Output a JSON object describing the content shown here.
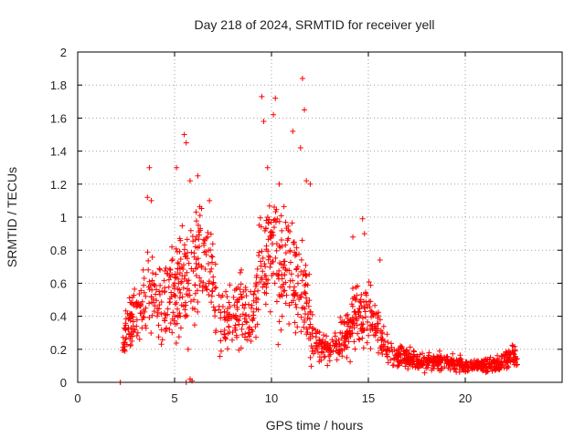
{
  "chart_data": {
    "type": "scatter",
    "title": "Day 218 of 2024, SRMTID for receiver yell",
    "xlabel": "GPS time / hours",
    "ylabel": "SRMTID / TECUs",
    "xlim": [
      0,
      25
    ],
    "ylim": [
      0,
      2
    ],
    "xticks": [
      0,
      5,
      10,
      15,
      20
    ],
    "yticks": [
      0,
      0.2,
      0.4,
      0.6,
      0.8,
      1,
      1.2,
      1.4,
      1.6,
      1.8,
      2
    ],
    "xtick_labels": [
      "0",
      "5",
      "10",
      "15",
      "20"
    ],
    "ytick_labels": [
      "0",
      "0.2",
      "0.4",
      "0.6",
      "0.8",
      "1",
      "1.2",
      "1.4",
      "1.6",
      "1.8",
      "2"
    ],
    "grid": true,
    "marker": "+",
    "series": [
      {
        "name": "SRMTID",
        "color": "#ff0000",
        "envelope": [
          {
            "x": 2.3,
            "mean": 0.22,
            "spread": 0.12
          },
          {
            "x": 2.6,
            "mean": 0.35,
            "spread": 0.16
          },
          {
            "x": 3.0,
            "mean": 0.42,
            "spread": 0.22
          },
          {
            "x": 3.5,
            "mean": 0.5,
            "spread": 0.28
          },
          {
            "x": 4.0,
            "mean": 0.52,
            "spread": 0.3
          },
          {
            "x": 4.5,
            "mean": 0.48,
            "spread": 0.28
          },
          {
            "x": 5.0,
            "mean": 0.52,
            "spread": 0.3
          },
          {
            "x": 5.5,
            "mean": 0.62,
            "spread": 0.38
          },
          {
            "x": 6.0,
            "mean": 0.72,
            "spread": 0.32
          },
          {
            "x": 6.5,
            "mean": 0.78,
            "spread": 0.28
          },
          {
            "x": 7.0,
            "mean": 0.6,
            "spread": 0.3
          },
          {
            "x": 7.5,
            "mean": 0.42,
            "spread": 0.22
          },
          {
            "x": 8.0,
            "mean": 0.38,
            "spread": 0.2
          },
          {
            "x": 8.5,
            "mean": 0.45,
            "spread": 0.25
          },
          {
            "x": 9.0,
            "mean": 0.35,
            "spread": 0.2
          },
          {
            "x": 9.5,
            "mean": 0.7,
            "spread": 0.38
          },
          {
            "x": 10.0,
            "mean": 0.82,
            "spread": 0.4
          },
          {
            "x": 10.5,
            "mean": 0.62,
            "spread": 0.35
          },
          {
            "x": 11.0,
            "mean": 0.7,
            "spread": 0.38
          },
          {
            "x": 11.5,
            "mean": 0.62,
            "spread": 0.35
          },
          {
            "x": 12.0,
            "mean": 0.32,
            "spread": 0.18
          },
          {
            "x": 12.5,
            "mean": 0.22,
            "spread": 0.1
          },
          {
            "x": 13.0,
            "mean": 0.2,
            "spread": 0.1
          },
          {
            "x": 13.5,
            "mean": 0.24,
            "spread": 0.12
          },
          {
            "x": 14.0,
            "mean": 0.32,
            "spread": 0.15
          },
          {
            "x": 14.5,
            "mean": 0.4,
            "spread": 0.2
          },
          {
            "x": 15.0,
            "mean": 0.42,
            "spread": 0.2
          },
          {
            "x": 15.5,
            "mean": 0.3,
            "spread": 0.15
          },
          {
            "x": 16.0,
            "mean": 0.18,
            "spread": 0.08
          },
          {
            "x": 17.0,
            "mean": 0.14,
            "spread": 0.06
          },
          {
            "x": 18.0,
            "mean": 0.12,
            "spread": 0.05
          },
          {
            "x": 19.0,
            "mean": 0.12,
            "spread": 0.05
          },
          {
            "x": 20.0,
            "mean": 0.1,
            "spread": 0.04
          },
          {
            "x": 21.0,
            "mean": 0.1,
            "spread": 0.04
          },
          {
            "x": 22.0,
            "mean": 0.12,
            "spread": 0.06
          },
          {
            "x": 22.5,
            "mean": 0.18,
            "spread": 0.08
          },
          {
            "x": 22.7,
            "mean": 0.15,
            "spread": 0.07
          }
        ],
        "notable_points": [
          [
            2.2,
            0.0
          ],
          [
            5.6,
            0.0
          ],
          [
            5.8,
            0.02
          ],
          [
            5.9,
            0.01
          ],
          [
            5.7,
            0.2
          ],
          [
            3.6,
            1.12
          ],
          [
            3.7,
            1.3
          ],
          [
            3.8,
            1.1
          ],
          [
            5.5,
            1.5
          ],
          [
            5.6,
            1.45
          ],
          [
            5.1,
            1.3
          ],
          [
            6.2,
            1.25
          ],
          [
            5.8,
            1.22
          ],
          [
            6.8,
            1.1
          ],
          [
            9.5,
            1.73
          ],
          [
            9.6,
            1.58
          ],
          [
            10.2,
            1.72
          ],
          [
            10.1,
            1.62
          ],
          [
            11.1,
            1.52
          ],
          [
            11.6,
            1.84
          ],
          [
            11.7,
            1.65
          ],
          [
            11.5,
            1.42
          ],
          [
            11.8,
            1.22
          ],
          [
            9.8,
            1.3
          ],
          [
            10.4,
            1.2
          ],
          [
            12.0,
            1.2
          ],
          [
            14.7,
            0.99
          ],
          [
            14.8,
            0.9
          ],
          [
            14.2,
            0.88
          ],
          [
            15.6,
            0.74
          ]
        ]
      }
    ],
    "n_points": 1500
  }
}
